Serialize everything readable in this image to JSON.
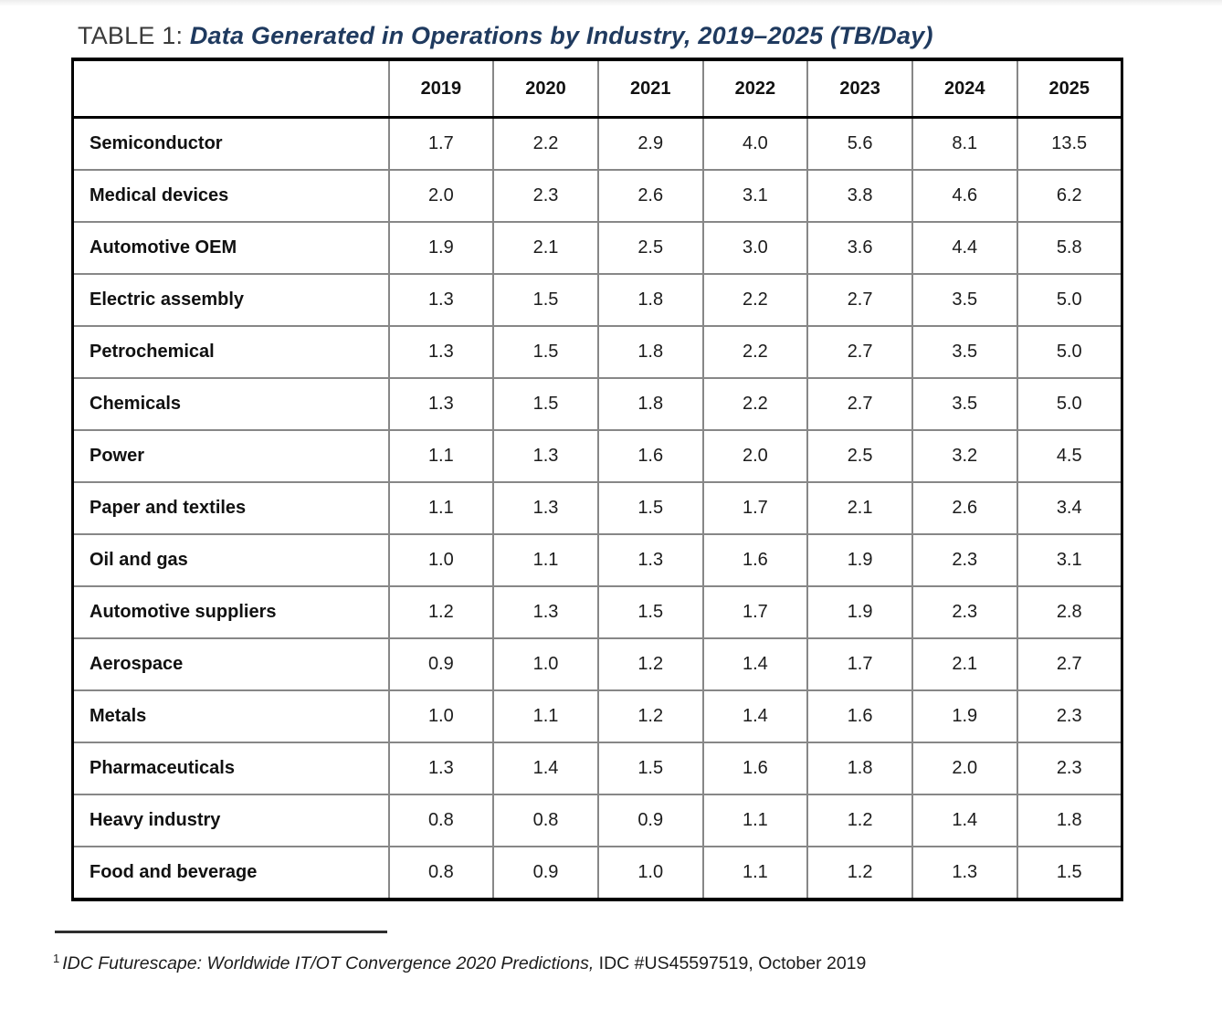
{
  "page": {
    "caption_prefix": "TABLE 1: ",
    "caption_title": "Data Generated in Operations by Industry, 2019–2025 (TB/Day)",
    "accent_color": "#1f3a5f",
    "footnote": {
      "marker": "1",
      "italic_part": "IDC Futurescape: Worldwide IT/OT Convergence 2020 Predictions,",
      "regular_part": " IDC #US45597519, October 2019"
    }
  },
  "table": {
    "columns": [
      "2019",
      "2020",
      "2021",
      "2022",
      "2023",
      "2024",
      "2025"
    ],
    "rows": [
      {
        "label": "Semiconductor",
        "values": [
          "1.7",
          "2.2",
          "2.9",
          "4.0",
          "5.6",
          "8.1",
          "13.5"
        ]
      },
      {
        "label": "Medical devices",
        "values": [
          "2.0",
          "2.3",
          "2.6",
          "3.1",
          "3.8",
          "4.6",
          "6.2"
        ]
      },
      {
        "label": "Automotive OEM",
        "values": [
          "1.9",
          "2.1",
          "2.5",
          "3.0",
          "3.6",
          "4.4",
          "5.8"
        ]
      },
      {
        "label": "Electric assembly",
        "values": [
          "1.3",
          "1.5",
          "1.8",
          "2.2",
          "2.7",
          "3.5",
          "5.0"
        ]
      },
      {
        "label": "Petrochemical",
        "values": [
          "1.3",
          "1.5",
          "1.8",
          "2.2",
          "2.7",
          "3.5",
          "5.0"
        ]
      },
      {
        "label": "Chemicals",
        "values": [
          "1.3",
          "1.5",
          "1.8",
          "2.2",
          "2.7",
          "3.5",
          "5.0"
        ]
      },
      {
        "label": "Power",
        "values": [
          "1.1",
          "1.3",
          "1.6",
          "2.0",
          "2.5",
          "3.2",
          "4.5"
        ]
      },
      {
        "label": "Paper and textiles",
        "values": [
          "1.1",
          "1.3",
          "1.5",
          "1.7",
          "2.1",
          "2.6",
          "3.4"
        ]
      },
      {
        "label": "Oil and gas",
        "values": [
          "1.0",
          "1.1",
          "1.3",
          "1.6",
          "1.9",
          "2.3",
          "3.1"
        ]
      },
      {
        "label": "Automotive suppliers",
        "values": [
          "1.2",
          "1.3",
          "1.5",
          "1.7",
          "1.9",
          "2.3",
          "2.8"
        ]
      },
      {
        "label": "Aerospace",
        "values": [
          "0.9",
          "1.0",
          "1.2",
          "1.4",
          "1.7",
          "2.1",
          "2.7"
        ]
      },
      {
        "label": "Metals",
        "values": [
          "1.0",
          "1.1",
          "1.2",
          "1.4",
          "1.6",
          "1.9",
          "2.3"
        ]
      },
      {
        "label": "Pharmaceuticals",
        "values": [
          "1.3",
          "1.4",
          "1.5",
          "1.6",
          "1.8",
          "2.0",
          "2.3"
        ]
      },
      {
        "label": "Heavy industry",
        "values": [
          "0.8",
          "0.8",
          "0.9",
          "1.1",
          "1.2",
          "1.4",
          "1.8"
        ]
      },
      {
        "label": "Food and beverage",
        "values": [
          "0.8",
          "0.9",
          "1.0",
          "1.1",
          "1.2",
          "1.3",
          "1.5"
        ]
      }
    ]
  },
  "chart_data": {
    "type": "table",
    "title": "Data Generated in Operations by Industry, 2019–2025 (TB/Day)",
    "unit": "TB/Day",
    "categories": [
      "2019",
      "2020",
      "2021",
      "2022",
      "2023",
      "2024",
      "2025"
    ],
    "series": [
      {
        "name": "Semiconductor",
        "values": [
          1.7,
          2.2,
          2.9,
          4.0,
          5.6,
          8.1,
          13.5
        ]
      },
      {
        "name": "Medical devices",
        "values": [
          2.0,
          2.3,
          2.6,
          3.1,
          3.8,
          4.6,
          6.2
        ]
      },
      {
        "name": "Automotive OEM",
        "values": [
          1.9,
          2.1,
          2.5,
          3.0,
          3.6,
          4.4,
          5.8
        ]
      },
      {
        "name": "Electric assembly",
        "values": [
          1.3,
          1.5,
          1.8,
          2.2,
          2.7,
          3.5,
          5.0
        ]
      },
      {
        "name": "Petrochemical",
        "values": [
          1.3,
          1.5,
          1.8,
          2.2,
          2.7,
          3.5,
          5.0
        ]
      },
      {
        "name": "Chemicals",
        "values": [
          1.3,
          1.5,
          1.8,
          2.2,
          2.7,
          3.5,
          5.0
        ]
      },
      {
        "name": "Power",
        "values": [
          1.1,
          1.3,
          1.6,
          2.0,
          2.5,
          3.2,
          4.5
        ]
      },
      {
        "name": "Paper and textiles",
        "values": [
          1.1,
          1.3,
          1.5,
          1.7,
          2.1,
          2.6,
          3.4
        ]
      },
      {
        "name": "Oil and gas",
        "values": [
          1.0,
          1.1,
          1.3,
          1.6,
          1.9,
          2.3,
          3.1
        ]
      },
      {
        "name": "Automotive suppliers",
        "values": [
          1.2,
          1.3,
          1.5,
          1.7,
          1.9,
          2.3,
          2.8
        ]
      },
      {
        "name": "Aerospace",
        "values": [
          0.9,
          1.0,
          1.2,
          1.4,
          1.7,
          2.1,
          2.7
        ]
      },
      {
        "name": "Metals",
        "values": [
          1.0,
          1.1,
          1.2,
          1.4,
          1.6,
          1.9,
          2.3
        ]
      },
      {
        "name": "Pharmaceuticals",
        "values": [
          1.3,
          1.4,
          1.5,
          1.6,
          1.8,
          2.0,
          2.3
        ]
      },
      {
        "name": "Heavy industry",
        "values": [
          0.8,
          0.8,
          0.9,
          1.1,
          1.2,
          1.4,
          1.8
        ]
      },
      {
        "name": "Food and beverage",
        "values": [
          0.8,
          0.9,
          1.0,
          1.1,
          1.2,
          1.3,
          1.5
        ]
      }
    ]
  }
}
